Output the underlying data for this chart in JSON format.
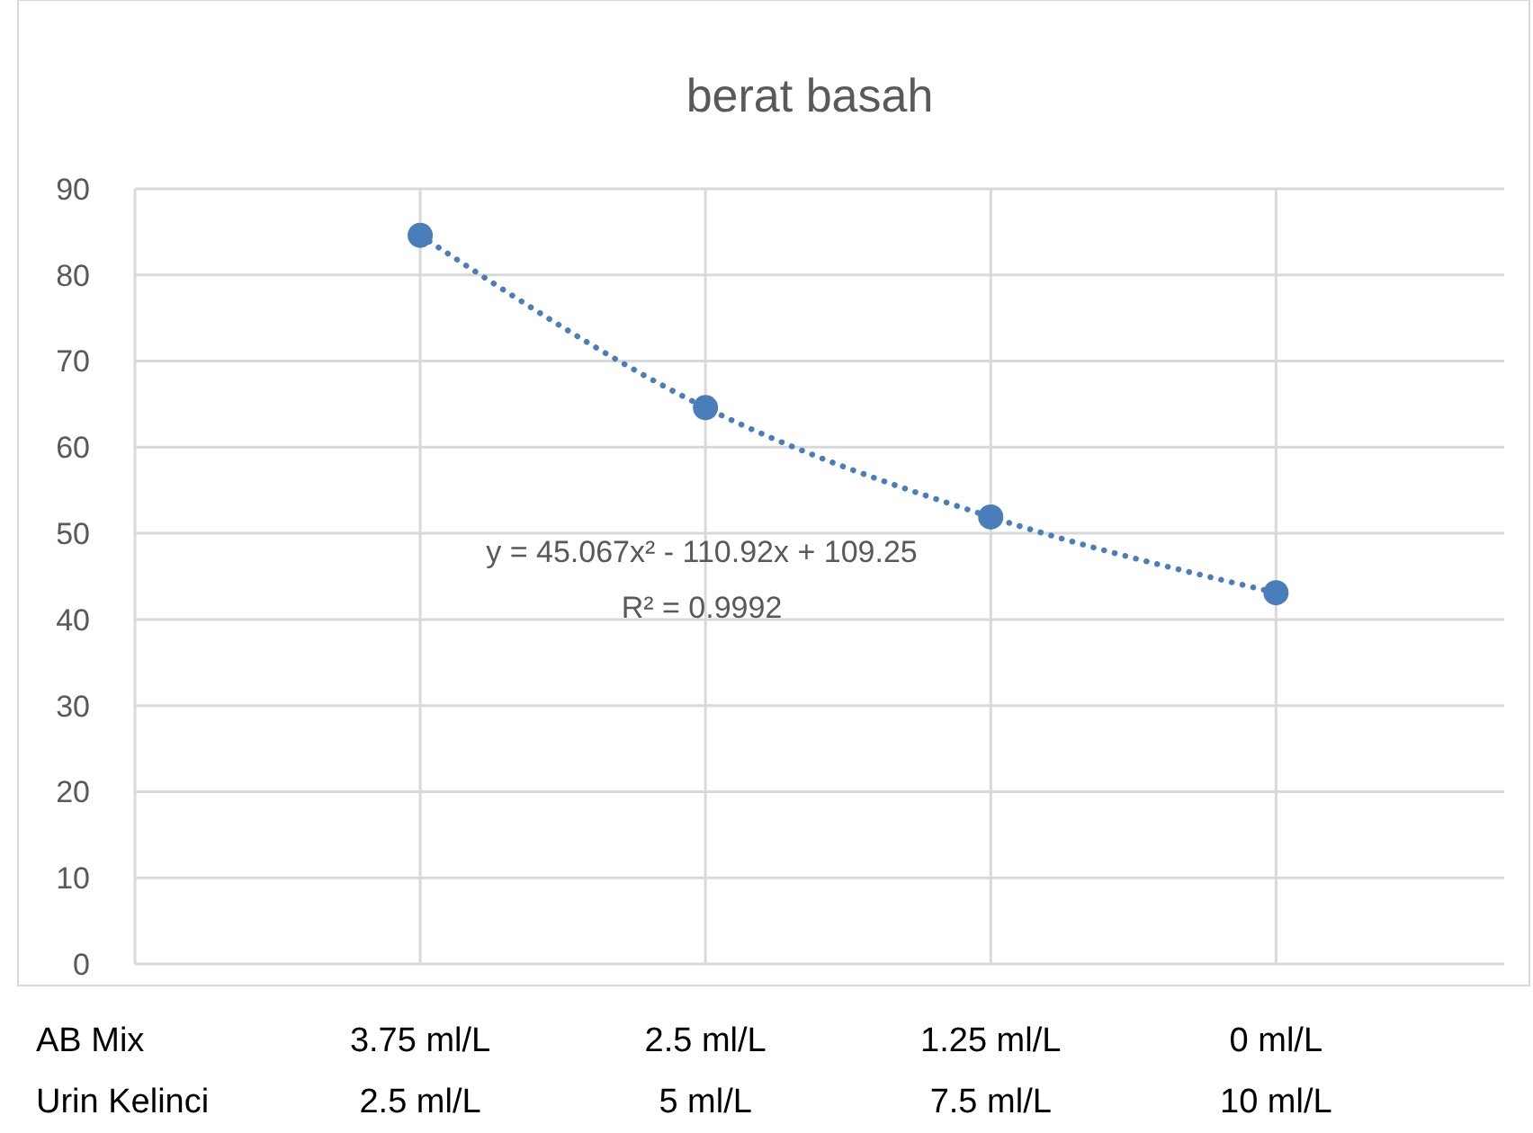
{
  "chart_data": {
    "type": "scatter",
    "title": "berat basah",
    "categories": [
      "3.75 ml/L\n2.5 ml/L",
      "2.5 ml/L\n5 ml/L",
      "1.25 ml/L\n7.5 ml/L",
      "0 ml/L\n10 ml/L"
    ],
    "series": [
      {
        "color": "#4a7ebb",
        "values": [
          84.6,
          64.6,
          51.9,
          43.1
        ],
        "marker": "circle"
      },
      {
        "type": "line",
        "color": "#4a7ebb",
        "values": [
          84.6,
          64.6,
          51.9,
          43.1
        ],
        "line_style": "dotted"
      }
    ],
    "ylim": [
      0,
      90
    ],
    "yticks": [
      0,
      10,
      20,
      30,
      40,
      50,
      60,
      70,
      80,
      90
    ],
    "grid": true,
    "annotations": [
      "y = 45.067x² - 110.92x + 109.25",
      "R² = 0.9992",
      "AB Mix",
      "Urin Kelinci"
    ]
  }
}
